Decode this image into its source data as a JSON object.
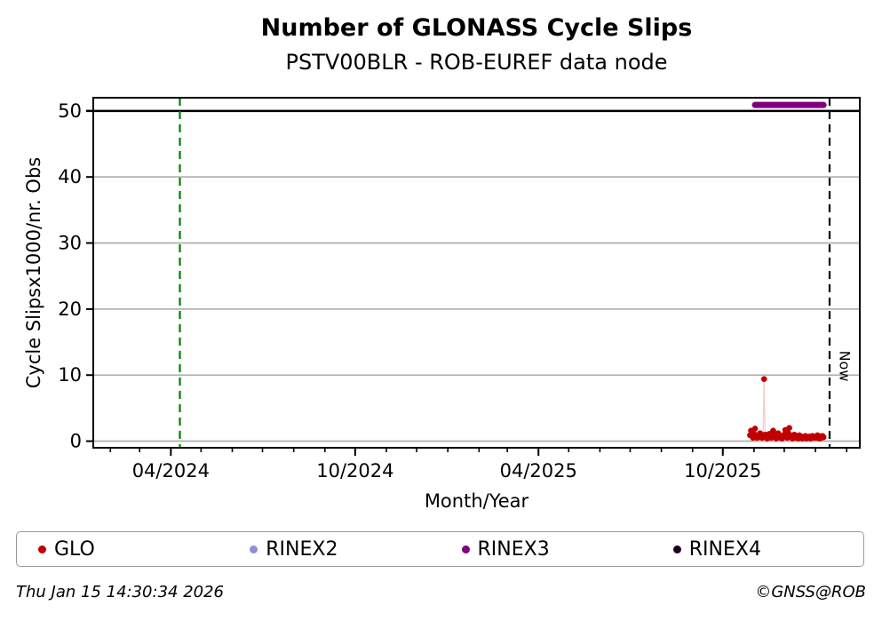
{
  "figure": {
    "title": "Number of GLONASS Cycle Slips",
    "subtitle": "PSTV00BLR - ROB-EUREF data node",
    "footer_left": "Thu Jan 15 14:30:34 2026",
    "footer_right": "©GNSS@ROB"
  },
  "legend": {
    "items": [
      {
        "label": "GLO",
        "color": "#c00000"
      },
      {
        "label": "RINEX2",
        "color": "#8f8fd0"
      },
      {
        "label": "RINEX3",
        "color": "#800080"
      },
      {
        "label": "RINEX4",
        "color": "#200020"
      }
    ]
  },
  "chart_data": {
    "type": "scatter",
    "title": "Number of GLONASS Cycle Slips",
    "subtitle": "PSTV00BLR - ROB-EUREF data node",
    "xlabel": "Month/Year",
    "ylabel": "Cycle Slipsx1000/nr. Obs",
    "x_range": [
      "2024-01-15",
      "2026-02-14"
    ],
    "ylim": [
      -1,
      52
    ],
    "yticks": [
      0,
      10,
      20,
      30,
      40,
      50
    ],
    "xticks_major": [
      {
        "date": "2024-04-01",
        "label": "04/2024"
      },
      {
        "date": "2024-10-01",
        "label": "10/2024"
      },
      {
        "date": "2025-04-01",
        "label": "04/2025"
      },
      {
        "date": "2025-10-01",
        "label": "10/2025"
      }
    ],
    "minor_ticks": "monthly",
    "grid": "horizontal",
    "grid_color": "#b3b3b3",
    "threshold_line": {
      "y": 50,
      "color": "#000000",
      "style": "solid"
    },
    "start_line": {
      "date": "2024-04-10",
      "color": "#007d00",
      "style": "dashed"
    },
    "now_line": {
      "date": "2026-01-15",
      "label": "Now",
      "color": "#000000",
      "style": "dashed"
    },
    "rinex3_band": {
      "name": "RINEX3",
      "color": "#800080",
      "start": "2025-11-02",
      "end": "2026-01-09",
      "value": 50.9
    },
    "series": [
      {
        "name": "GLO",
        "color": "#c00000",
        "points": [
          [
            "2025-10-28",
            0.9
          ],
          [
            "2025-10-29",
            1.6
          ],
          [
            "2025-10-30",
            0.8
          ],
          [
            "2025-10-31",
            0.5
          ],
          [
            "2025-11-01",
            1.1
          ],
          [
            "2025-11-02",
            1.9
          ],
          [
            "2025-11-03",
            0.7
          ],
          [
            "2025-11-04",
            0.5
          ],
          [
            "2025-11-05",
            0.9
          ],
          [
            "2025-11-06",
            0.6
          ],
          [
            "2025-11-07",
            1.2
          ],
          [
            "2025-11-08",
            0.8
          ],
          [
            "2025-11-09",
            0.5
          ],
          [
            "2025-11-10",
            0.7
          ],
          [
            "2025-11-11",
            9.4
          ],
          [
            "2025-11-12",
            1.0
          ],
          [
            "2025-11-13",
            0.6
          ],
          [
            "2025-11-14",
            0.4
          ],
          [
            "2025-11-15",
            0.8
          ],
          [
            "2025-11-16",
            1.1
          ],
          [
            "2025-11-17",
            0.9
          ],
          [
            "2025-11-18",
            0.5
          ],
          [
            "2025-11-19",
            1.3
          ],
          [
            "2025-11-20",
            1.6
          ],
          [
            "2025-11-21",
            1.1
          ],
          [
            "2025-11-22",
            0.7
          ],
          [
            "2025-11-23",
            0.4
          ],
          [
            "2025-11-24",
            0.9
          ],
          [
            "2025-11-25",
            1.2
          ],
          [
            "2025-11-26",
            0.6
          ],
          [
            "2025-11-27",
            0.5
          ],
          [
            "2025-11-28",
            0.8
          ],
          [
            "2025-11-29",
            0.4
          ],
          [
            "2025-11-30",
            0.6
          ],
          [
            "2025-12-01",
            1.0
          ],
          [
            "2025-12-02",
            1.7
          ],
          [
            "2025-12-03",
            0.8
          ],
          [
            "2025-12-04",
            0.5
          ],
          [
            "2025-12-05",
            1.2
          ],
          [
            "2025-12-06",
            2.0
          ],
          [
            "2025-12-07",
            0.9
          ],
          [
            "2025-12-08",
            0.6
          ],
          [
            "2025-12-09",
            0.4
          ],
          [
            "2025-12-10",
            0.7
          ],
          [
            "2025-12-11",
            1.0
          ],
          [
            "2025-12-12",
            0.5
          ],
          [
            "2025-12-13",
            0.8
          ],
          [
            "2025-12-14",
            0.6
          ],
          [
            "2025-12-15",
            0.4
          ],
          [
            "2025-12-16",
            0.9
          ],
          [
            "2025-12-17",
            0.5
          ],
          [
            "2025-12-18",
            0.7
          ],
          [
            "2025-12-19",
            0.4
          ],
          [
            "2025-12-20",
            0.6
          ],
          [
            "2025-12-21",
            0.5
          ],
          [
            "2025-12-22",
            0.8
          ],
          [
            "2025-12-23",
            0.4
          ],
          [
            "2025-12-24",
            0.6
          ],
          [
            "2025-12-25",
            0.5
          ],
          [
            "2025-12-26",
            0.7
          ],
          [
            "2025-12-27",
            0.4
          ],
          [
            "2025-12-28",
            0.6
          ],
          [
            "2025-12-29",
            0.8
          ],
          [
            "2025-12-30",
            0.5
          ],
          [
            "2025-12-31",
            0.6
          ],
          [
            "2026-01-01",
            0.7
          ],
          [
            "2026-01-02",
            0.5
          ],
          [
            "2026-01-03",
            0.9
          ],
          [
            "2026-01-04",
            0.6
          ],
          [
            "2026-01-05",
            0.4
          ],
          [
            "2026-01-06",
            0.7
          ],
          [
            "2026-01-07",
            0.5
          ],
          [
            "2026-01-08",
            0.8
          ],
          [
            "2026-01-09",
            0.6
          ]
        ]
      },
      {
        "name": "RINEX2",
        "color": "#8f8fd0",
        "points": []
      },
      {
        "name": "RINEX4",
        "color": "#200020",
        "points": []
      }
    ]
  }
}
